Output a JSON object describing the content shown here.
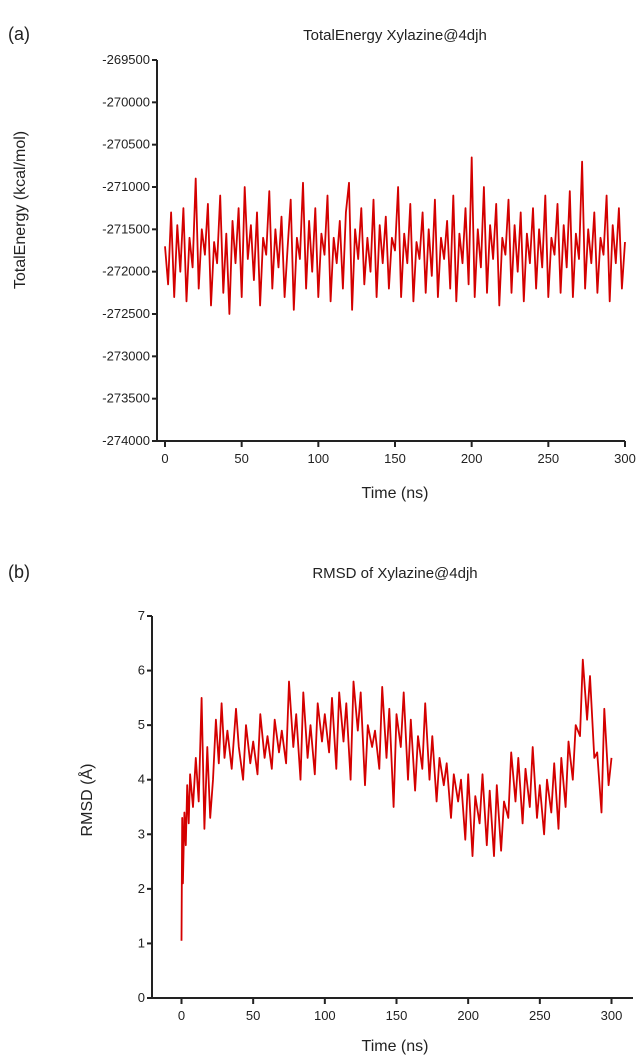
{
  "chart_data": [
    {
      "panel_label": "(a)",
      "type": "line",
      "title": "TotalEnergy Xylazine@4djh",
      "xlabel": "Time (ns)",
      "ylabel": "TotalEnergy (kcal/mol)",
      "xlim": [
        0,
        300
      ],
      "ylim": [
        -274000,
        -269500
      ],
      "xticks": [
        0,
        50,
        100,
        150,
        200,
        250,
        300
      ],
      "yticks": [
        -269500,
        -270000,
        -270500,
        -271000,
        -271500,
        -272000,
        -272500,
        -273000,
        -273500,
        -274000
      ],
      "color": "#d40000",
      "grid": false,
      "series": [
        {
          "x": [
            0,
            2,
            4,
            6,
            8,
            10,
            12,
            14,
            16,
            18,
            20,
            22,
            24,
            26,
            28,
            30,
            32,
            34,
            36,
            38,
            40,
            42,
            44,
            46,
            48,
            50,
            52,
            54,
            56,
            58,
            60,
            62,
            64,
            66,
            68,
            70,
            72,
            74,
            76,
            78,
            80,
            82,
            84,
            86,
            88,
            90,
            92,
            94,
            96,
            98,
            100,
            102,
            104,
            106,
            108,
            110,
            112,
            114,
            116,
            118,
            120,
            122,
            124,
            126,
            128,
            130,
            132,
            134,
            136,
            138,
            140,
            142,
            144,
            146,
            148,
            150,
            152,
            154,
            156,
            158,
            160,
            162,
            164,
            166,
            168,
            170,
            172,
            174,
            176,
            178,
            180,
            182,
            184,
            186,
            188,
            190,
            192,
            194,
            196,
            198,
            200,
            202,
            204,
            206,
            208,
            210,
            212,
            214,
            216,
            218,
            220,
            222,
            224,
            226,
            228,
            230,
            232,
            234,
            236,
            238,
            240,
            242,
            244,
            246,
            248,
            250,
            252,
            254,
            256,
            258,
            260,
            262,
            264,
            266,
            268,
            270,
            272,
            274,
            276,
            278,
            280,
            282,
            284,
            286,
            288,
            290,
            292,
            294,
            296,
            298,
            300
          ],
          "values": [
            -271700,
            -272150,
            -271300,
            -272300,
            -271450,
            -272000,
            -271250,
            -272350,
            -271600,
            -271950,
            -270900,
            -272200,
            -271500,
            -271800,
            -271200,
            -272400,
            -271650,
            -271900,
            -271100,
            -272250,
            -271550,
            -272500,
            -271400,
            -271900,
            -271250,
            -272300,
            -271000,
            -271850,
            -271450,
            -272100,
            -271300,
            -272400,
            -271600,
            -271800,
            -271050,
            -272200,
            -271500,
            -271950,
            -271350,
            -272300,
            -271700,
            -271150,
            -272450,
            -271600,
            -271850,
            -270950,
            -272200,
            -271400,
            -272000,
            -271250,
            -272300,
            -271550,
            -271800,
            -271100,
            -272350,
            -271600,
            -271900,
            -271400,
            -272200,
            -271300,
            -270950,
            -272450,
            -271500,
            -271850,
            -271250,
            -272150,
            -271600,
            -272000,
            -271150,
            -272300,
            -271450,
            -271900,
            -271350,
            -272200,
            -271600,
            -271750,
            -271000,
            -272300,
            -271550,
            -271900,
            -271200,
            -272350,
            -271650,
            -271850,
            -271300,
            -272250,
            -271500,
            -272050,
            -271150,
            -272300,
            -271600,
            -271850,
            -271400,
            -272200,
            -271100,
            -272350,
            -271550,
            -271900,
            -271250,
            -272150,
            -270650,
            -272300,
            -271500,
            -271950,
            -271000,
            -272250,
            -271450,
            -271850,
            -271200,
            -272400,
            -271600,
            -271800,
            -271150,
            -272250,
            -271450,
            -272000,
            -271300,
            -272350,
            -271550,
            -271900,
            -271250,
            -272200,
            -271500,
            -271950,
            -271100,
            -272300,
            -271600,
            -271800,
            -271200,
            -272250,
            -271450,
            -271950,
            -271050,
            -272300,
            -271550,
            -271850,
            -270700,
            -272200,
            -271500,
            -271900,
            -271300,
            -272250,
            -271600,
            -271800,
            -271100,
            -272350,
            -271450,
            -271900,
            -271250,
            -272200,
            -271650
          ]
        }
      ]
    },
    {
      "panel_label": "(b)",
      "type": "line",
      "title": "RMSD of Xylazine@4djh",
      "xlabel": "Time (ns)",
      "ylabel": "RMSD (Å)",
      "xlim": [
        -15,
        315
      ],
      "ylim": [
        0,
        7
      ],
      "xticks": [
        0,
        50,
        100,
        150,
        200,
        250,
        300
      ],
      "yticks": [
        0,
        1,
        2,
        3,
        4,
        5,
        6,
        7
      ],
      "color": "#d40000",
      "grid": false,
      "series": [
        {
          "x": [
            0,
            0.5,
            1,
            2,
            3,
            4,
            5,
            6,
            8,
            10,
            12,
            14,
            15,
            16,
            18,
            20,
            22,
            24,
            26,
            28,
            30,
            32,
            35,
            38,
            40,
            43,
            45,
            48,
            50,
            53,
            55,
            58,
            60,
            63,
            65,
            68,
            70,
            73,
            75,
            78,
            80,
            83,
            85,
            88,
            90,
            93,
            95,
            98,
            100,
            103,
            105,
            108,
            110,
            113,
            115,
            118,
            120,
            123,
            125,
            128,
            130,
            133,
            135,
            138,
            140,
            143,
            145,
            148,
            150,
            153,
            155,
            158,
            160,
            163,
            165,
            168,
            170,
            173,
            175,
            178,
            180,
            183,
            185,
            188,
            190,
            193,
            195,
            198,
            200,
            203,
            205,
            208,
            210,
            213,
            215,
            218,
            220,
            223,
            225,
            228,
            230,
            233,
            235,
            238,
            240,
            243,
            245,
            248,
            250,
            253,
            255,
            258,
            260,
            263,
            265,
            268,
            270,
            273,
            275,
            278,
            280,
            283,
            285,
            288,
            290,
            293,
            295,
            298,
            300
          ],
          "values": [
            1.05,
            3.3,
            2.1,
            3.4,
            2.8,
            3.9,
            3.2,
            4.1,
            3.5,
            4.4,
            3.6,
            5.5,
            4.3,
            3.1,
            4.6,
            3.3,
            4.0,
            5.1,
            4.3,
            5.4,
            4.4,
            4.9,
            4.2,
            5.3,
            4.6,
            4.0,
            5.0,
            4.3,
            4.7,
            4.1,
            5.2,
            4.4,
            4.8,
            4.2,
            5.1,
            4.5,
            4.9,
            4.3,
            5.8,
            4.6,
            5.2,
            4.0,
            5.6,
            4.4,
            5.0,
            4.1,
            5.4,
            4.7,
            5.2,
            4.5,
            5.5,
            4.2,
            5.6,
            4.7,
            5.4,
            4.0,
            5.8,
            4.9,
            5.6,
            3.9,
            5.0,
            4.6,
            4.9,
            4.2,
            5.7,
            4.4,
            5.3,
            3.5,
            5.2,
            4.6,
            5.6,
            4.0,
            5.1,
            3.8,
            4.8,
            4.2,
            5.4,
            4.0,
            4.8,
            3.6,
            4.4,
            3.9,
            4.3,
            3.3,
            4.1,
            3.6,
            4.0,
            2.9,
            4.1,
            2.6,
            3.7,
            3.2,
            4.1,
            2.8,
            3.8,
            2.6,
            3.9,
            2.7,
            3.6,
            3.3,
            4.5,
            3.6,
            4.4,
            3.2,
            4.2,
            3.5,
            4.6,
            3.3,
            3.9,
            3.0,
            4.0,
            3.4,
            4.3,
            3.1,
            4.4,
            3.5,
            4.7,
            4.0,
            5.0,
            4.8,
            6.2,
            5.1,
            5.9,
            4.4,
            4.5,
            3.4,
            5.3,
            3.9,
            4.4
          ]
        }
      ]
    }
  ]
}
